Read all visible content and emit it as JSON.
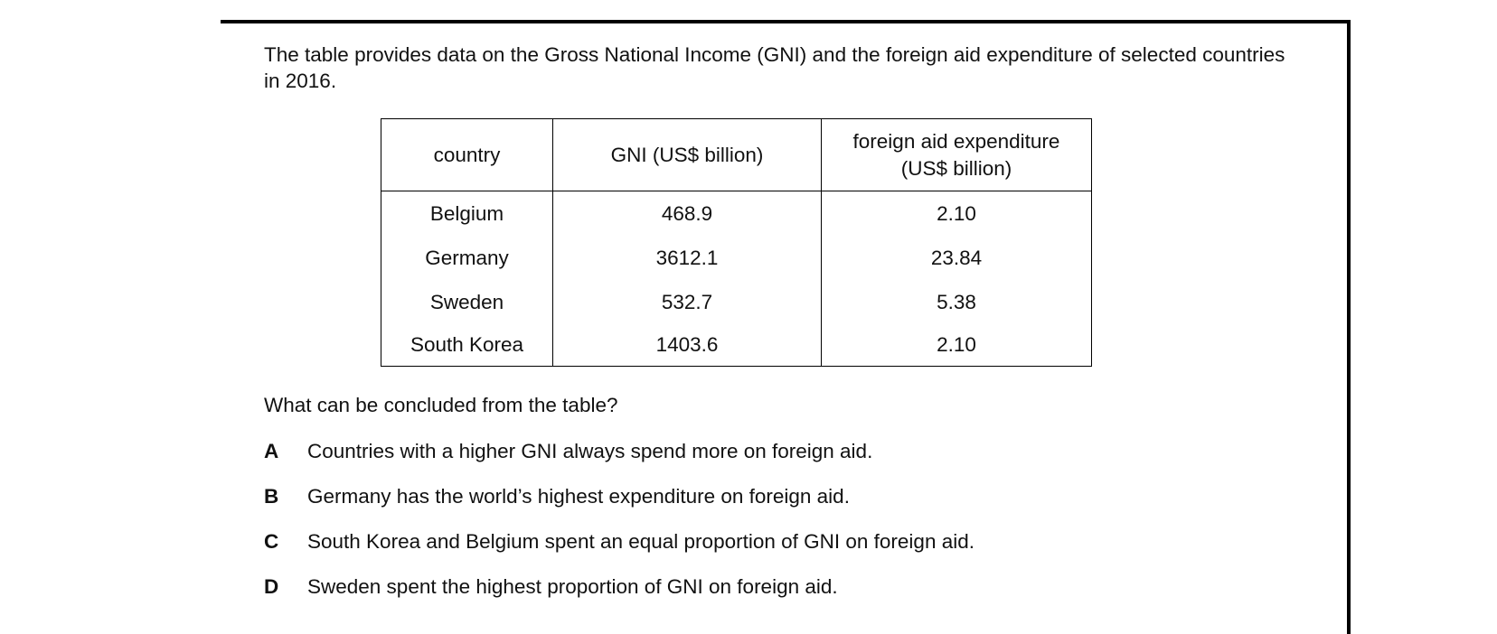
{
  "intro": "The table provides data on the Gross National Income (GNI) and the foreign aid expenditure of selected countries in 2016.",
  "table": {
    "headers": {
      "country": "country",
      "gni": "GNI (US$ billion)",
      "aid_line1": "foreign aid expenditure",
      "aid_line2": "(US$ billion)"
    },
    "rows": [
      {
        "country": "Belgium",
        "gni": "468.9",
        "aid": "2.10"
      },
      {
        "country": "Germany",
        "gni": "3612.1",
        "aid": "23.84"
      },
      {
        "country": "Sweden",
        "gni": "532.7",
        "aid": "5.38"
      },
      {
        "country": "South Korea",
        "gni": "1403.6",
        "aid": "2.10"
      }
    ]
  },
  "question": "What can be concluded from the table?",
  "options": [
    {
      "letter": "A",
      "text": "Countries with a higher GNI always spend more on foreign aid."
    },
    {
      "letter": "B",
      "text": "Germany has the world’s highest expenditure on foreign aid."
    },
    {
      "letter": "C",
      "text": "South Korea and Belgium spent an equal proportion of GNI on foreign aid."
    },
    {
      "letter": "D",
      "text": "Sweden spent the highest proportion of GNI on foreign aid."
    }
  ]
}
